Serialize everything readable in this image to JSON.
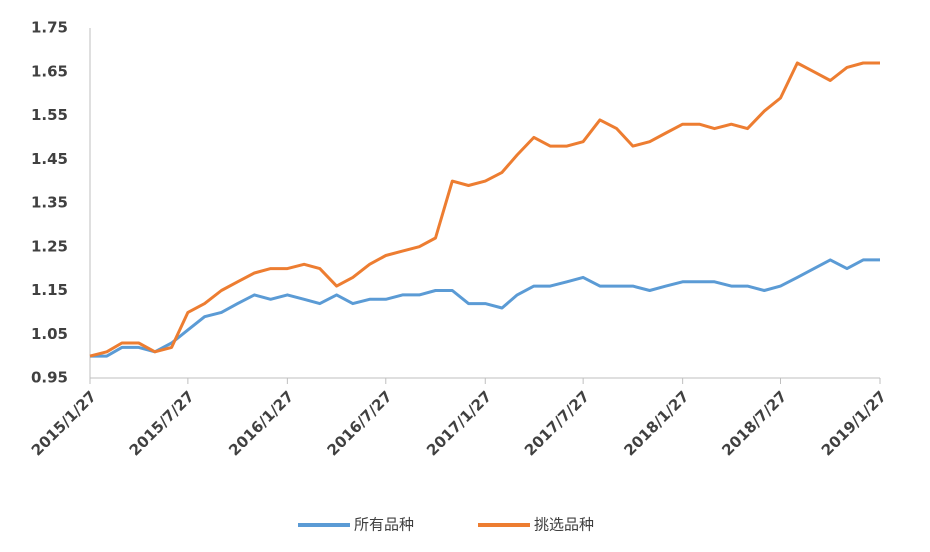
{
  "chart_data": {
    "type": "line",
    "x": [
      "2015/1/27",
      "2015/2/27",
      "2015/3/27",
      "2015/4/27",
      "2015/5/27",
      "2015/6/27",
      "2015/7/27",
      "2015/8/27",
      "2015/9/27",
      "2015/10/27",
      "2015/11/27",
      "2015/12/27",
      "2016/1/27",
      "2016/2/27",
      "2016/3/27",
      "2016/4/27",
      "2016/5/27",
      "2016/6/27",
      "2016/7/27",
      "2016/8/27",
      "2016/9/27",
      "2016/10/27",
      "2016/11/27",
      "2016/12/27",
      "2017/1/27",
      "2017/2/27",
      "2017/3/27",
      "2017/4/27",
      "2017/5/27",
      "2017/6/27",
      "2017/7/27",
      "2017/8/27",
      "2017/9/27",
      "2017/10/27",
      "2017/11/27",
      "2017/12/27",
      "2018/1/27",
      "2018/2/27",
      "2018/3/27",
      "2018/4/27",
      "2018/5/27",
      "2018/6/27",
      "2018/7/27",
      "2018/8/27",
      "2018/9/27",
      "2018/10/27",
      "2018/11/27",
      "2018/12/27",
      "2019/1/27"
    ],
    "series": [
      {
        "name": "所有品种",
        "color": "#5b9bd5",
        "values": [
          1.0,
          1.0,
          1.02,
          1.02,
          1.01,
          1.03,
          1.06,
          1.09,
          1.1,
          1.12,
          1.14,
          1.13,
          1.14,
          1.13,
          1.12,
          1.14,
          1.12,
          1.13,
          1.13,
          1.14,
          1.14,
          1.15,
          1.15,
          1.12,
          1.12,
          1.11,
          1.14,
          1.16,
          1.16,
          1.17,
          1.18,
          1.16,
          1.16,
          1.16,
          1.15,
          1.16,
          1.17,
          1.17,
          1.17,
          1.16,
          1.16,
          1.15,
          1.16,
          1.18,
          1.2,
          1.22,
          1.2,
          1.22,
          1.22
        ]
      },
      {
        "name": "挑选品种",
        "color": "#ed7d31",
        "values": [
          1.0,
          1.01,
          1.03,
          1.03,
          1.01,
          1.02,
          1.1,
          1.12,
          1.15,
          1.17,
          1.19,
          1.2,
          1.2,
          1.21,
          1.2,
          1.16,
          1.18,
          1.21,
          1.23,
          1.24,
          1.25,
          1.27,
          1.4,
          1.39,
          1.4,
          1.42,
          1.46,
          1.5,
          1.48,
          1.48,
          1.49,
          1.54,
          1.52,
          1.48,
          1.49,
          1.51,
          1.53,
          1.53,
          1.52,
          1.53,
          1.52,
          1.56,
          1.59,
          1.67,
          1.65,
          1.63,
          1.66,
          1.67,
          1.67
        ]
      }
    ],
    "xlim": [
      "2015/1/27",
      "2019/1/27"
    ],
    "xticks": [
      "2015/1/27",
      "2015/7/27",
      "2016/1/27",
      "2016/7/27",
      "2017/1/27",
      "2017/7/27",
      "2018/1/27",
      "2018/7/27",
      "2019/1/27"
    ],
    "ylim": [
      0.95,
      1.75
    ],
    "yticks": [
      0.95,
      1.05,
      1.15,
      1.25,
      1.35,
      1.45,
      1.55,
      1.65,
      1.75
    ],
    "grid": false,
    "legend": "bottom"
  }
}
